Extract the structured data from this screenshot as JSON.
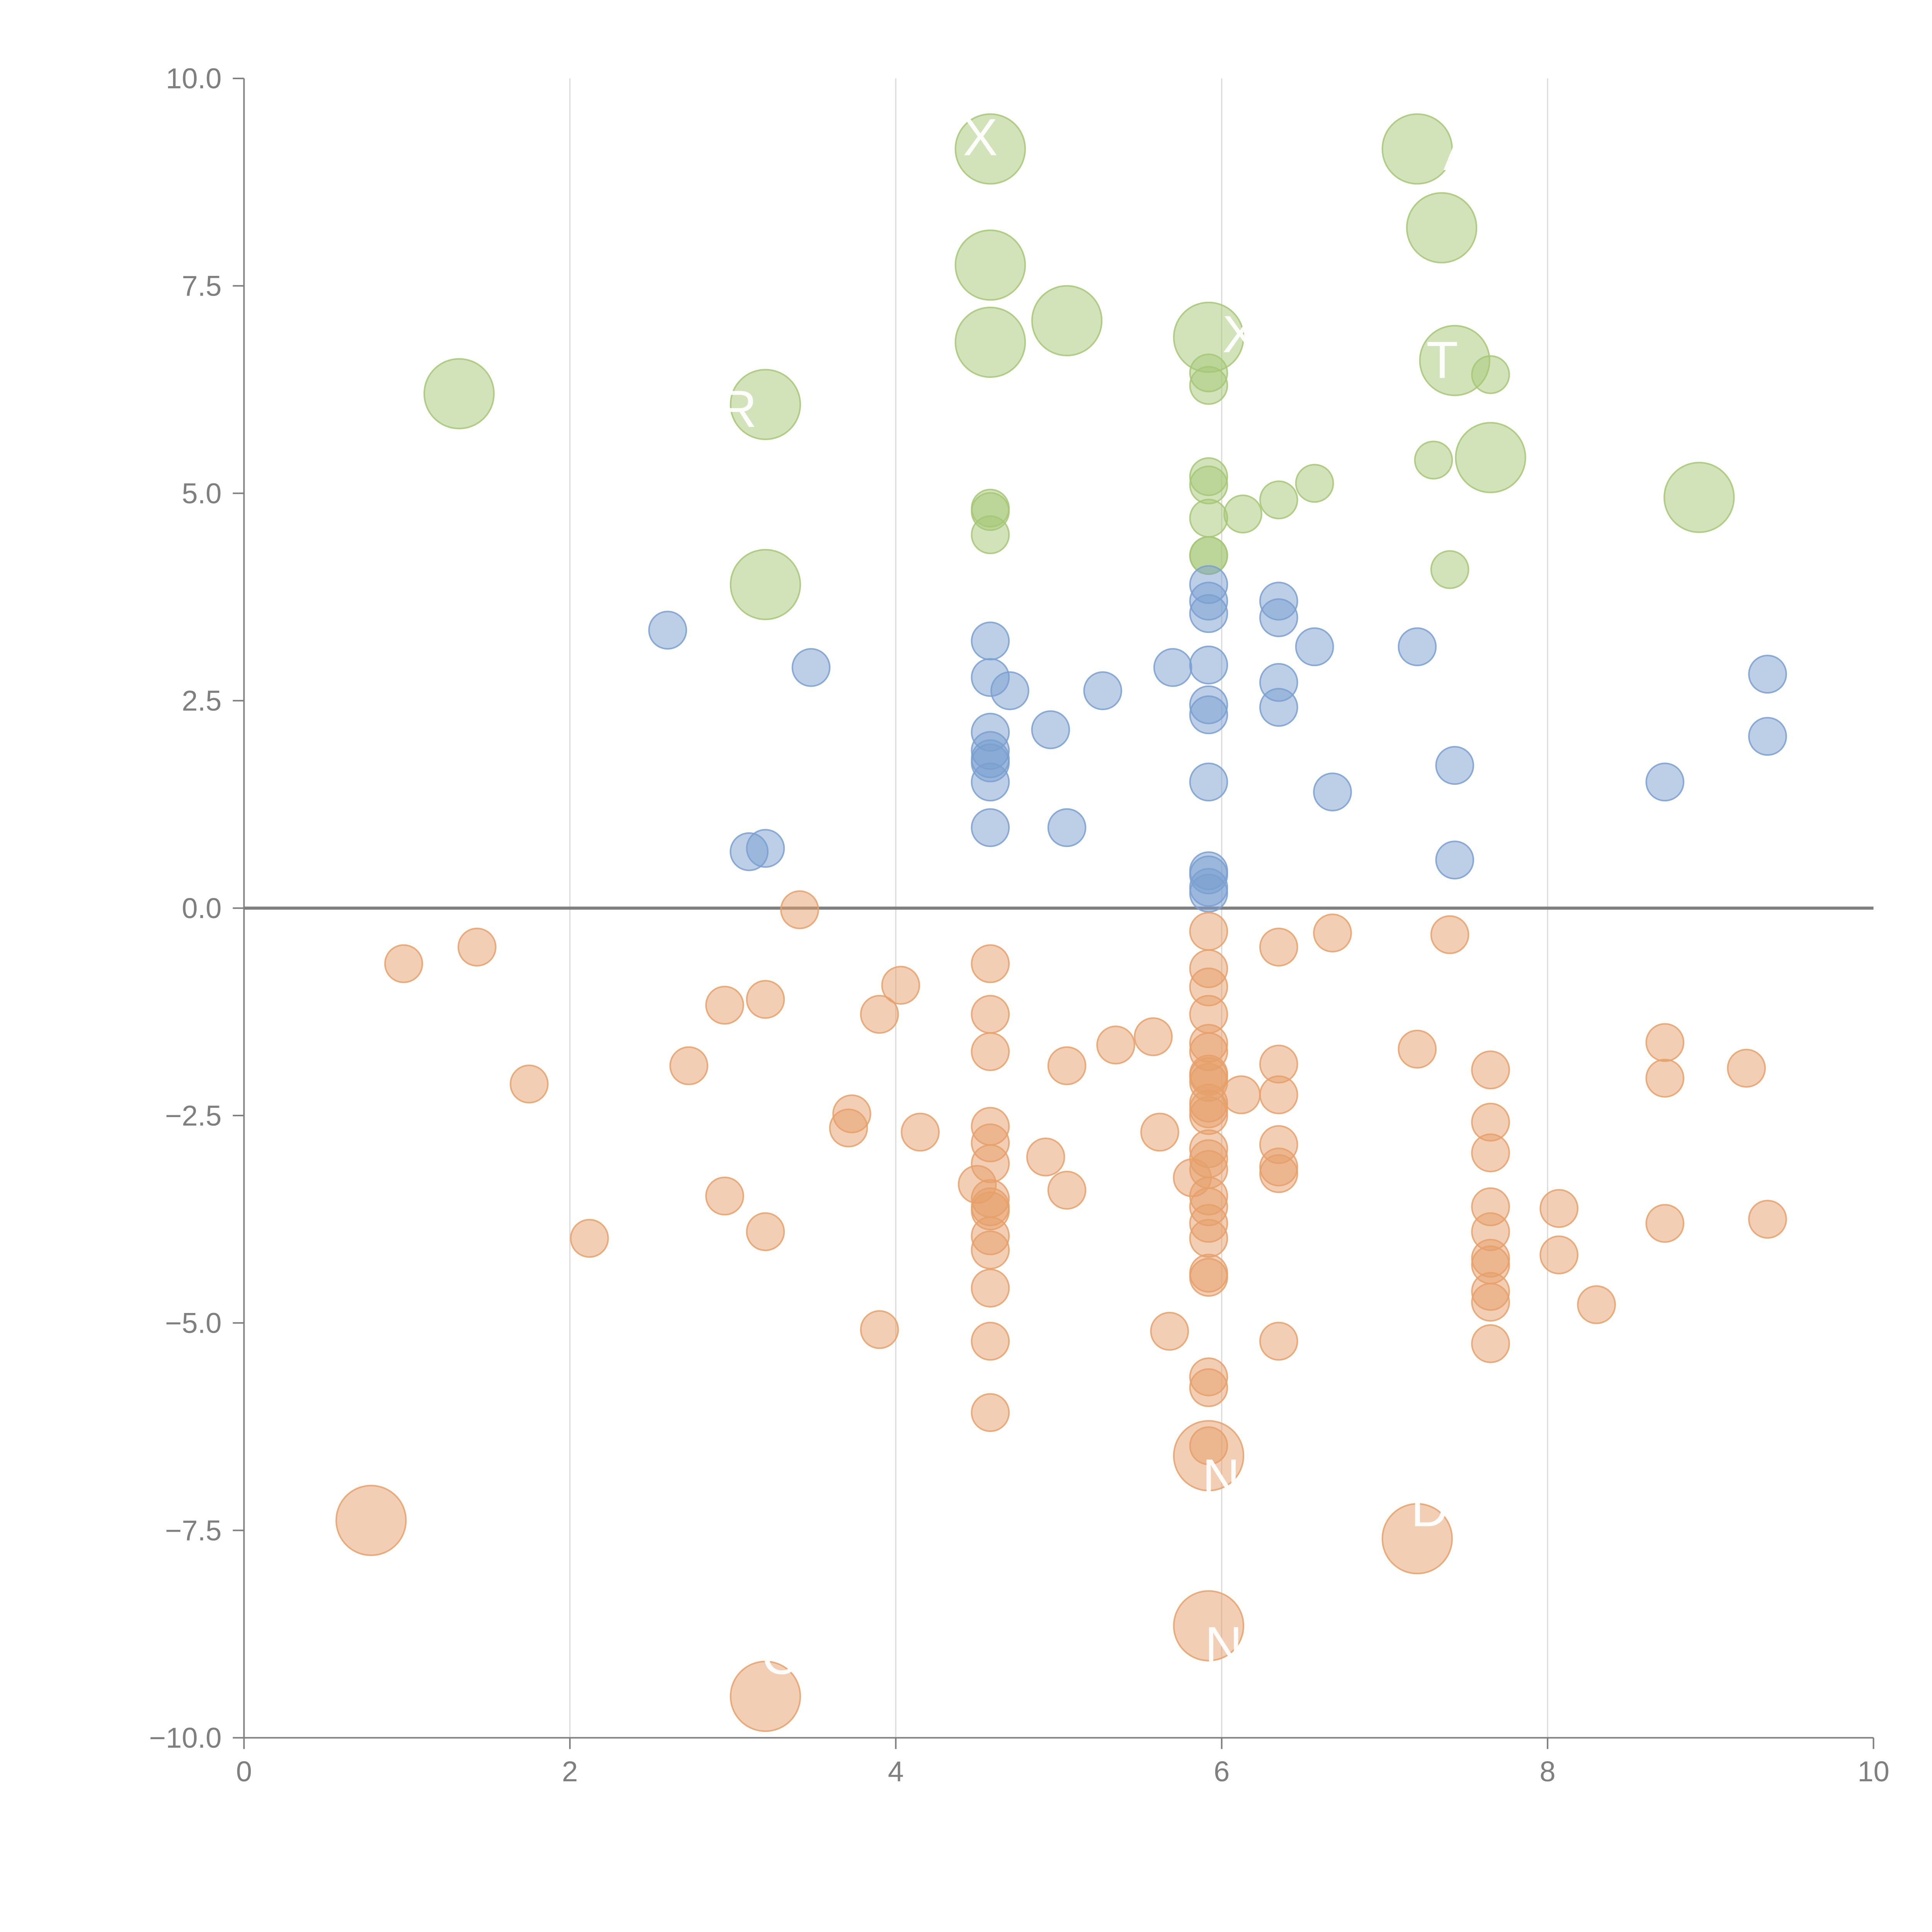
{
  "chart_data": {
    "type": "scatter",
    "title": "",
    "xlabel": "",
    "ylabel": "",
    "xlim": [
      0,
      10
    ],
    "ylim": [
      -10,
      10
    ],
    "grid": "vertical",
    "legend": "none",
    "x_ticks": [
      "0",
      "2",
      "4",
      "6",
      "8",
      "10"
    ],
    "y_ticks": [
      "10.0",
      "7.5",
      "5.0",
      "2.5",
      "0.0",
      "−2.5",
      "−5.0",
      "−7.5",
      "−10.0"
    ],
    "colors": {
      "green": "#a6c776",
      "blue": "#7a9fd0",
      "orange": "#e6a06a",
      "grid": "#d9d9d9",
      "axis": "#808080",
      "zero_line": "#7f7f7f",
      "tick_label": "#7f7f7f"
    },
    "series": [
      {
        "name": "green-small",
        "color": "#a6c776",
        "points": [
          [
            5.92,
            6.45
          ],
          [
            5.92,
            6.3
          ],
          [
            7.65,
            6.43
          ],
          [
            7.3,
            5.4
          ],
          [
            6.57,
            5.12
          ],
          [
            5.92,
            5.2
          ],
          [
            5.92,
            5.1
          ],
          [
            6.35,
            4.92
          ],
          [
            6.13,
            4.75
          ],
          [
            5.92,
            4.7
          ],
          [
            4.58,
            4.82
          ],
          [
            4.58,
            4.78
          ],
          [
            4.58,
            4.5
          ],
          [
            5.92,
            4.25
          ],
          [
            5.92,
            4.25
          ],
          [
            7.4,
            4.08
          ]
        ]
      },
      {
        "name": "green-large",
        "color": "#a6c776",
        "points": [
          [
            4.58,
            9.15
          ],
          [
            7.2,
            9.15
          ],
          [
            7.35,
            8.2
          ],
          [
            4.58,
            7.75
          ],
          [
            5.05,
            7.08
          ],
          [
            5.92,
            6.88
          ],
          [
            4.58,
            6.82
          ],
          [
            7.43,
            6.6
          ],
          [
            1.32,
            6.2
          ],
          [
            3.2,
            6.07
          ],
          [
            7.65,
            5.43
          ],
          [
            8.93,
            4.95
          ],
          [
            3.2,
            3.9
          ]
        ]
      },
      {
        "name": "blue",
        "color": "#7a9fd0",
        "points": [
          [
            5.92,
            3.9
          ],
          [
            6.35,
            3.7
          ],
          [
            5.92,
            3.7
          ],
          [
            5.92,
            3.55
          ],
          [
            6.35,
            3.5
          ],
          [
            2.6,
            3.35
          ],
          [
            4.58,
            3.22
          ],
          [
            6.57,
            3.15
          ],
          [
            7.2,
            3.15
          ],
          [
            3.48,
            2.9
          ],
          [
            5.7,
            2.9
          ],
          [
            5.92,
            2.93
          ],
          [
            9.35,
            2.82
          ],
          [
            4.58,
            2.78
          ],
          [
            6.35,
            2.72
          ],
          [
            4.7,
            2.62
          ],
          [
            5.27,
            2.62
          ],
          [
            5.92,
            2.45
          ],
          [
            6.35,
            2.42
          ],
          [
            5.92,
            2.33
          ],
          [
            4.95,
            2.15
          ],
          [
            4.58,
            2.12
          ],
          [
            9.35,
            2.07
          ],
          [
            4.58,
            1.9
          ],
          [
            4.58,
            1.8
          ],
          [
            4.58,
            1.75
          ],
          [
            7.43,
            1.72
          ],
          [
            4.58,
            1.52
          ],
          [
            5.92,
            1.52
          ],
          [
            8.72,
            1.52
          ],
          [
            6.68,
            1.4
          ],
          [
            4.58,
            0.97
          ],
          [
            5.05,
            0.97
          ],
          [
            3.2,
            0.72
          ],
          [
            3.1,
            0.68
          ],
          [
            7.43,
            0.58
          ],
          [
            5.92,
            0.45
          ],
          [
            5.92,
            0.4
          ],
          [
            5.92,
            0.25
          ],
          [
            5.92,
            0.18
          ]
        ]
      },
      {
        "name": "orange-small",
        "color": "#e6a06a",
        "points": [
          [
            3.41,
            -0.02
          ],
          [
            5.92,
            -0.28
          ],
          [
            6.68,
            -0.3
          ],
          [
            7.4,
            -0.32
          ],
          [
            1.43,
            -0.47
          ],
          [
            6.35,
            -0.47
          ],
          [
            0.98,
            -0.67
          ],
          [
            4.58,
            -0.67
          ],
          [
            5.92,
            -0.73
          ],
          [
            4.03,
            -0.93
          ],
          [
            5.92,
            -0.95
          ],
          [
            3.2,
            -1.1
          ],
          [
            2.95,
            -1.17
          ],
          [
            3.9,
            -1.28
          ],
          [
            4.58,
            -1.28
          ],
          [
            5.92,
            -1.28
          ],
          [
            5.58,
            -1.55
          ],
          [
            8.72,
            -1.62
          ],
          [
            5.92,
            -1.63
          ],
          [
            5.35,
            -1.65
          ],
          [
            7.2,
            -1.7
          ],
          [
            4.58,
            -1.73
          ],
          [
            5.92,
            -1.73
          ],
          [
            2.73,
            -1.9
          ],
          [
            5.05,
            -1.9
          ],
          [
            6.35,
            -1.88
          ],
          [
            9.22,
            -1.93
          ],
          [
            7.65,
            -1.95
          ],
          [
            5.92,
            -2.0
          ],
          [
            5.92,
            -2.03
          ],
          [
            8.72,
            -2.05
          ],
          [
            5.92,
            -2.1
          ],
          [
            1.75,
            -2.12
          ],
          [
            6.12,
            -2.25
          ],
          [
            6.35,
            -2.25
          ],
          [
            5.92,
            -2.35
          ],
          [
            5.92,
            -2.42
          ],
          [
            3.73,
            -2.48
          ],
          [
            5.92,
            -2.5
          ],
          [
            7.65,
            -2.58
          ],
          [
            3.71,
            -2.65
          ],
          [
            4.58,
            -2.63
          ],
          [
            5.62,
            -2.7
          ],
          [
            4.15,
            -2.7
          ],
          [
            4.58,
            -2.83
          ],
          [
            6.35,
            -2.85
          ],
          [
            5.92,
            -2.9
          ],
          [
            7.65,
            -2.95
          ],
          [
            4.92,
            -3.0
          ],
          [
            5.92,
            -3.02
          ],
          [
            4.58,
            -3.08
          ],
          [
            6.35,
            -3.12
          ],
          [
            5.92,
            -3.15
          ],
          [
            6.35,
            -3.2
          ],
          [
            5.82,
            -3.25
          ],
          [
            4.5,
            -3.33
          ],
          [
            5.05,
            -3.4
          ],
          [
            2.95,
            -3.47
          ],
          [
            5.92,
            -3.47
          ],
          [
            4.58,
            -3.5
          ],
          [
            4.58,
            -3.6
          ],
          [
            5.92,
            -3.6
          ],
          [
            7.65,
            -3.6
          ],
          [
            8.07,
            -3.62
          ],
          [
            4.58,
            -3.65
          ],
          [
            9.35,
            -3.75
          ],
          [
            8.72,
            -3.8
          ],
          [
            5.92,
            -3.8
          ],
          [
            3.2,
            -3.9
          ],
          [
            7.65,
            -3.9
          ],
          [
            4.58,
            -3.95
          ],
          [
            2.12,
            -3.98
          ],
          [
            5.92,
            -3.98
          ],
          [
            4.58,
            -4.12
          ],
          [
            8.07,
            -4.18
          ],
          [
            7.65,
            -4.22
          ],
          [
            7.65,
            -4.3
          ],
          [
            5.92,
            -4.4
          ],
          [
            5.92,
            -4.45
          ],
          [
            4.58,
            -4.58
          ],
          [
            7.65,
            -4.62
          ],
          [
            7.65,
            -4.75
          ],
          [
            8.3,
            -4.78
          ],
          [
            3.9,
            -5.08
          ],
          [
            5.68,
            -5.1
          ],
          [
            4.58,
            -5.22
          ],
          [
            6.35,
            -5.22
          ],
          [
            7.65,
            -5.25
          ],
          [
            5.92,
            -5.65
          ],
          [
            5.92,
            -5.78
          ],
          [
            4.58,
            -6.08
          ],
          [
            5.92,
            -6.48
          ]
        ]
      },
      {
        "name": "orange-large",
        "color": "#e6a06a",
        "points": [
          [
            5.92,
            -6.6
          ],
          [
            0.78,
            -7.38
          ],
          [
            7.2,
            -7.6
          ],
          [
            5.92,
            -8.65
          ],
          [
            3.2,
            -9.5
          ]
        ]
      }
    ],
    "annotations": [
      "X",
      "A",
      "X",
      "R",
      "T",
      "N",
      "D",
      "N",
      "C"
    ]
  }
}
